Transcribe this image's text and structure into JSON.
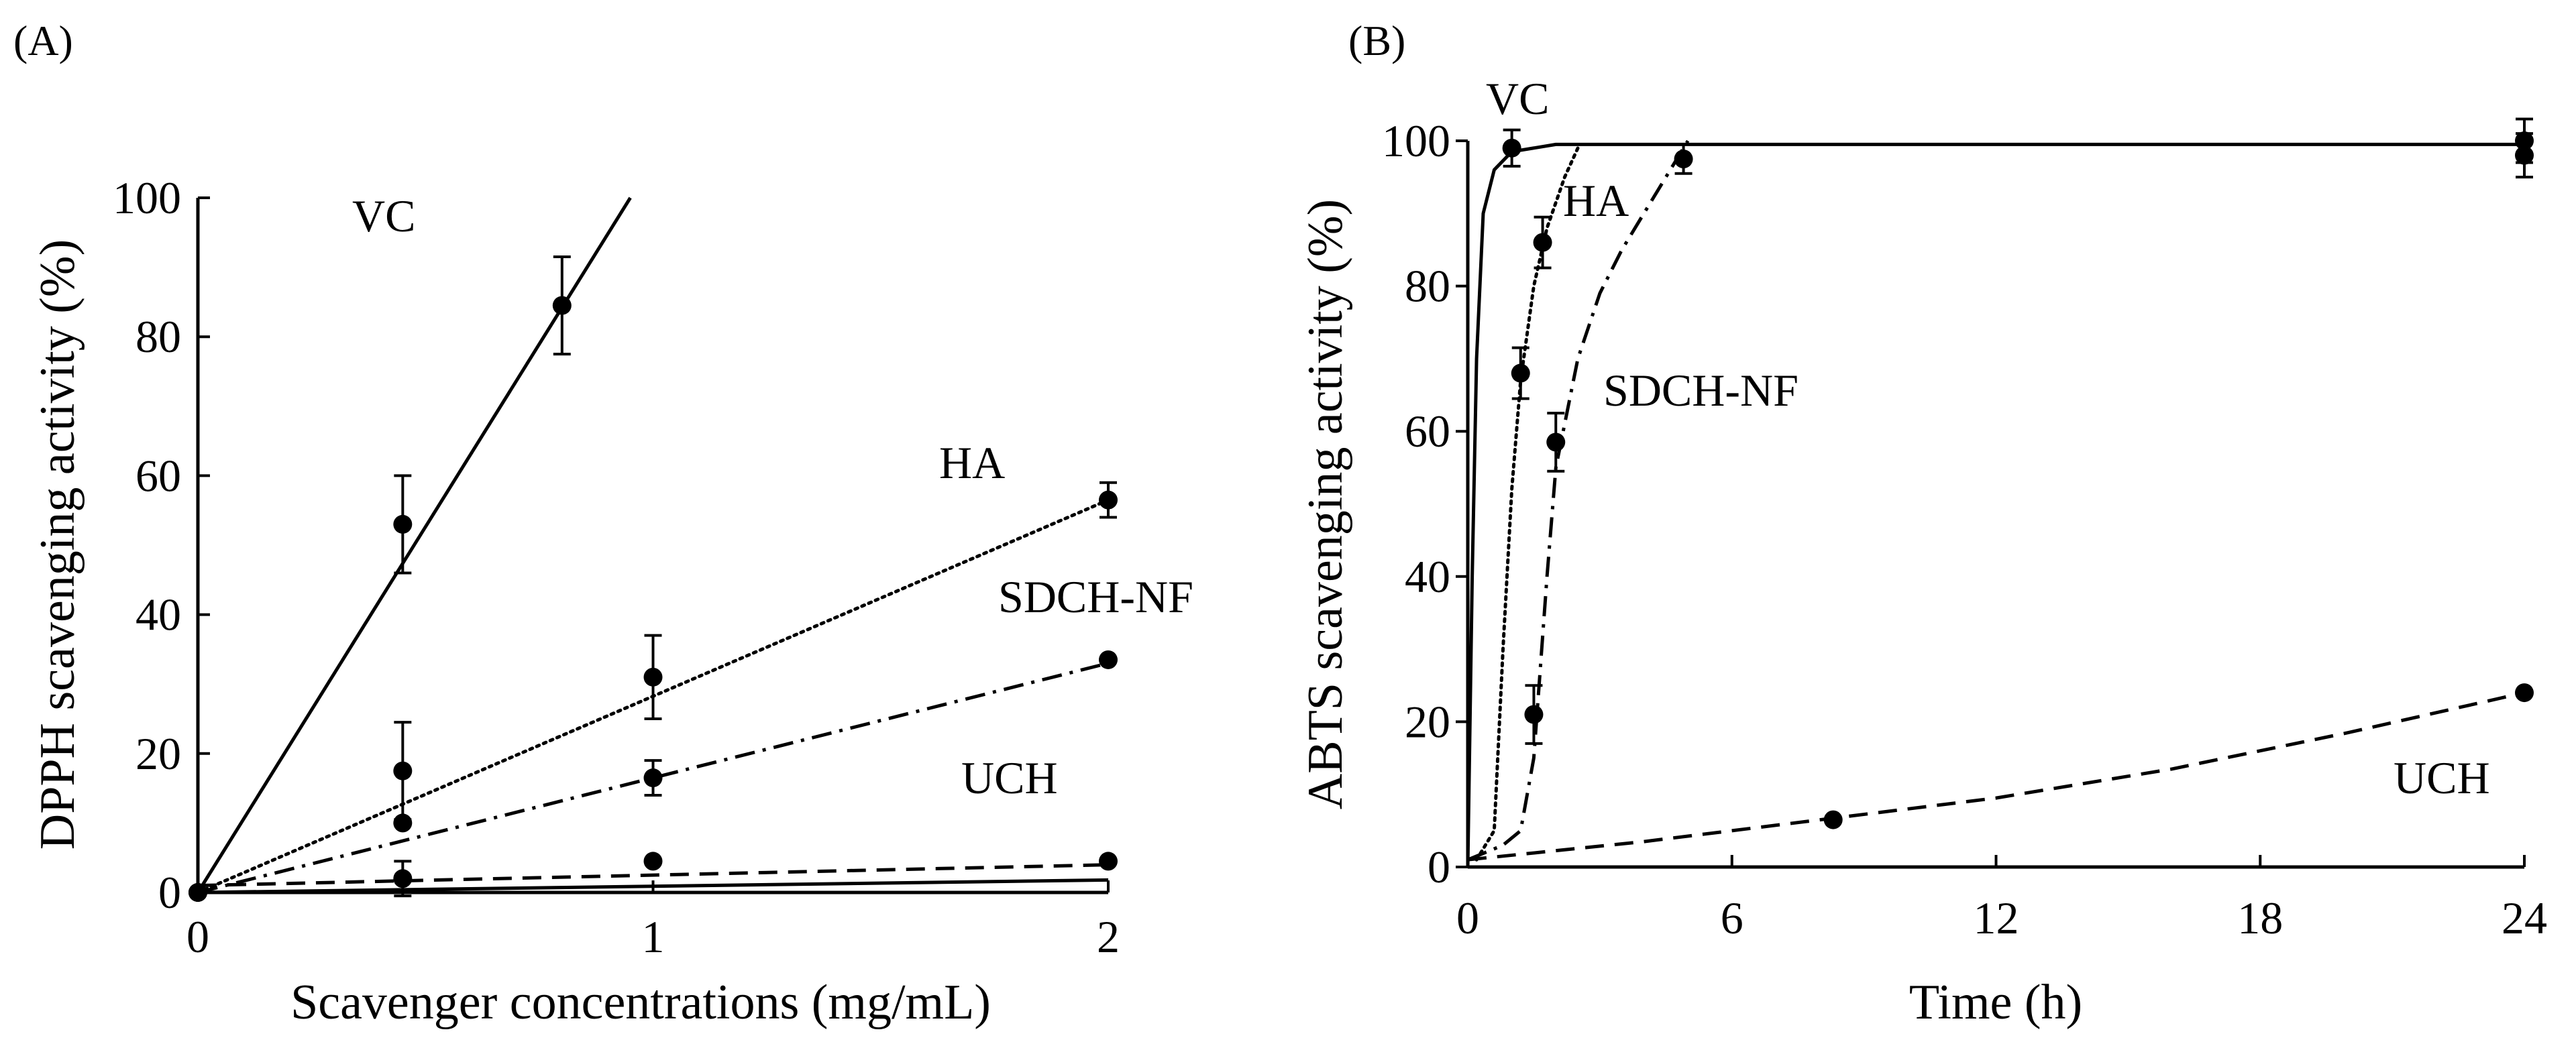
{
  "colors": {
    "ink": "#000000",
    "background": "#ffffff"
  },
  "chart_data": [
    {
      "panel": "(A)",
      "type": "line",
      "xlabel": "Scavenger concentrations (mg/mL)",
      "ylabel": "DPPH scavenging activity (%)",
      "xlim": [
        0,
        2
      ],
      "ylim": [
        0,
        100
      ],
      "xticks": [
        "0",
        "1",
        "2"
      ],
      "yticks": [
        "0",
        "20",
        "40",
        "60",
        "80",
        "100"
      ],
      "grid": false,
      "legend": "inline labels",
      "series": [
        {
          "name": "VC",
          "style": "solid",
          "points": [
            {
              "x": 0,
              "y": 0
            },
            {
              "x": 0.45,
              "y": 53,
              "err": 7
            },
            {
              "x": 0.8,
              "y": 84.5,
              "err": 7
            }
          ],
          "fit": [
            [
              0,
              0
            ],
            [
              0.95,
              100
            ]
          ]
        },
        {
          "name": "HA",
          "style": "dotted",
          "points": [
            {
              "x": 0,
              "y": 0
            },
            {
              "x": 0.45,
              "y": 17.5,
              "err": 7
            },
            {
              "x": 1,
              "y": 31,
              "err": 6
            },
            {
              "x": 2,
              "y": 56.5,
              "err": 2.5
            }
          ],
          "fit": [
            [
              0,
              0
            ],
            [
              2,
              56.5
            ]
          ]
        },
        {
          "name": "SDCH-NF",
          "style": "dashdot",
          "points": [
            {
              "x": 0,
              "y": 0
            },
            {
              "x": 0.45,
              "y": 10
            },
            {
              "x": 1,
              "y": 16.5,
              "err": 2.5
            },
            {
              "x": 2,
              "y": 33.5
            }
          ],
          "fit": [
            [
              0,
              0
            ],
            [
              2,
              33
            ]
          ]
        },
        {
          "name": "UCH",
          "style": "dashed",
          "points": [
            {
              "x": 0,
              "y": 0
            },
            {
              "x": 0.45,
              "y": 2,
              "err": 2.5
            },
            {
              "x": 1,
              "y": 4.5
            },
            {
              "x": 2,
              "y": 4.5
            }
          ],
          "fit": [
            [
              0,
              1
            ],
            [
              2,
              4
            ]
          ]
        },
        {
          "name": "",
          "style": "solid",
          "points": [],
          "fit": [
            [
              0,
              0
            ],
            [
              2,
              1.8
            ]
          ]
        }
      ]
    },
    {
      "panel": "(B)",
      "type": "line",
      "xlabel": "Time  (h)",
      "ylabel": "ABTS scavenging activity (%)",
      "xlim": [
        0,
        24
      ],
      "ylim": [
        0,
        100
      ],
      "xticks": [
        "0",
        "6",
        "12",
        "18",
        "24"
      ],
      "yticks": [
        "0",
        "20",
        "40",
        "60",
        "80",
        "100"
      ],
      "grid": false,
      "legend": "inline labels",
      "series": [
        {
          "name": "VC",
          "style": "solid",
          "points": [
            {
              "x": 1,
              "y": 99,
              "err": 2.5
            },
            {
              "x": 24,
              "y": 100,
              "err": 3
            }
          ],
          "fit": [
            [
              0,
              0
            ],
            [
              0.1,
              40
            ],
            [
              0.2,
              70
            ],
            [
              0.35,
              90
            ],
            [
              0.6,
              96
            ],
            [
              1,
              98.5
            ],
            [
              2,
              99.5
            ],
            [
              24,
              99.5
            ]
          ]
        },
        {
          "name": "HA",
          "style": "dotted",
          "points": [
            {
              "x": 1.2,
              "y": 68,
              "err": 3.5
            },
            {
              "x": 1.7,
              "y": 86,
              "err": 3.5
            }
          ],
          "fit": [
            [
              0.2,
              1
            ],
            [
              0.6,
              5
            ],
            [
              0.8,
              30
            ],
            [
              1,
              52
            ],
            [
              1.2,
              67
            ],
            [
              1.5,
              80
            ],
            [
              1.8,
              88
            ],
            [
              2.2,
              95
            ],
            [
              2.5,
              99
            ]
          ]
        },
        {
          "name": "SDCH-NF",
          "style": "dashdot",
          "points": [
            {
              "x": 1.5,
              "y": 21,
              "err": 4
            },
            {
              "x": 2,
              "y": 58.5,
              "err": 4
            },
            {
              "x": 4.9,
              "y": 97.5,
              "err": 2
            },
            {
              "x": 24,
              "y": 98,
              "err": 3
            }
          ],
          "fit": [
            [
              0,
              1
            ],
            [
              0.8,
              3
            ],
            [
              1.2,
              5
            ],
            [
              1.5,
              15
            ],
            [
              1.8,
              40
            ],
            [
              2,
              55
            ],
            [
              2.5,
              70
            ],
            [
              3,
              79
            ],
            [
              3.5,
              85
            ],
            [
              4,
              90
            ],
            [
              4.5,
              95
            ],
            [
              5,
              100
            ]
          ]
        },
        {
          "name": "UCH",
          "style": "dashed",
          "points": [
            {
              "x": 8.3,
              "y": 6.5
            },
            {
              "x": 24,
              "y": 24
            }
          ],
          "fit": [
            [
              0,
              1
            ],
            [
              4,
              3.5
            ],
            [
              8,
              6.5
            ],
            [
              12,
              9.5
            ],
            [
              16,
              13.5
            ],
            [
              20,
              18.5
            ],
            [
              24,
              24
            ]
          ]
        }
      ]
    }
  ]
}
